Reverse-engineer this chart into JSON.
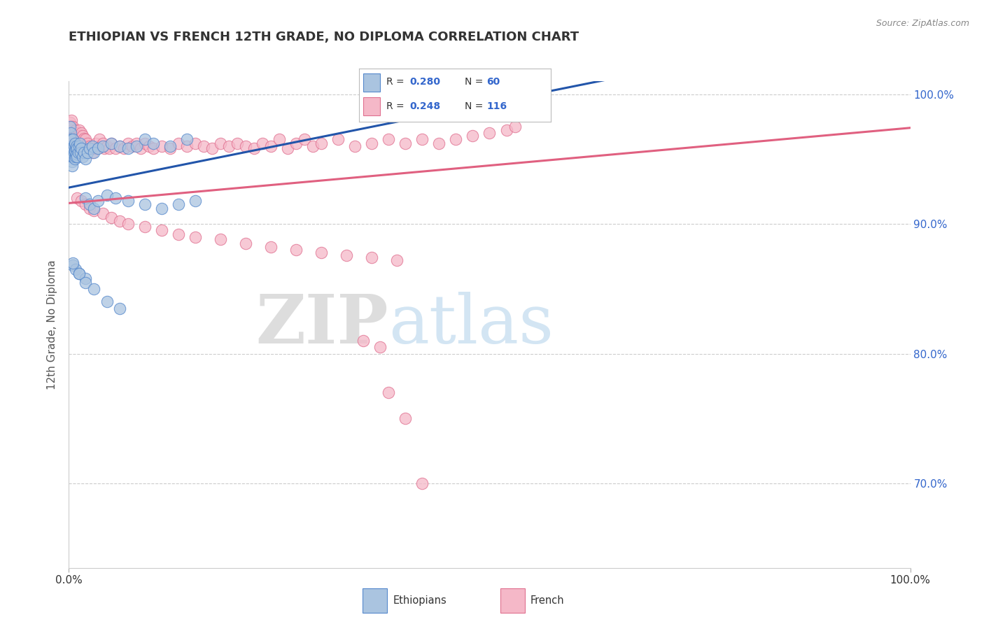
{
  "title": "ETHIOPIAN VS FRENCH 12TH GRADE, NO DIPLOMA CORRELATION CHART",
  "source_text": "Source: ZipAtlas.com",
  "ylabel": "12th Grade, No Diploma",
  "xlim": [
    0.0,
    1.0
  ],
  "ylim": [
    0.635,
    1.01
  ],
  "right_yticks": [
    0.7,
    0.8,
    0.9,
    1.0
  ],
  "right_yticklabels": [
    "70.0%",
    "80.0%",
    "90.0%",
    "100.0%"
  ],
  "legend_r_ethiopian": "0.280",
  "legend_n_ethiopian": "60",
  "legend_r_french": "0.248",
  "legend_n_french": "116",
  "blue_fill": "#aac4e0",
  "blue_edge": "#5588cc",
  "pink_fill": "#f5b8c8",
  "pink_edge": "#e07090",
  "blue_line": "#2255aa",
  "pink_line": "#e06080",
  "label_color": "#3366cc",
  "watermark_zip": "ZIP",
  "watermark_atlas": "atlas",
  "background_color": "#ffffff",
  "eth_x": [
    0.001,
    0.002,
    0.002,
    0.003,
    0.003,
    0.003,
    0.004,
    0.004,
    0.004,
    0.005,
    0.005,
    0.005,
    0.006,
    0.006,
    0.007,
    0.007,
    0.007,
    0.008,
    0.008,
    0.009,
    0.009,
    0.01,
    0.01,
    0.011,
    0.012,
    0.013,
    0.014,
    0.015,
    0.016,
    0.018,
    0.02,
    0.022,
    0.025,
    0.028,
    0.03,
    0.035,
    0.04,
    0.05,
    0.06,
    0.07,
    0.08,
    0.09,
    0.1,
    0.12,
    0.14,
    0.02,
    0.025,
    0.03,
    0.035,
    0.045,
    0.055,
    0.07,
    0.09,
    0.11,
    0.13,
    0.15,
    0.005,
    0.008,
    0.012,
    0.02
  ],
  "eth_y": [
    0.975,
    0.97,
    0.965,
    0.96,
    0.958,
    0.955,
    0.952,
    0.948,
    0.945,
    0.965,
    0.958,
    0.952,
    0.96,
    0.955,
    0.962,
    0.956,
    0.95,
    0.958,
    0.952,
    0.96,
    0.954,
    0.958,
    0.952,
    0.955,
    0.96,
    0.962,
    0.955,
    0.958,
    0.952,
    0.955,
    0.95,
    0.955,
    0.958,
    0.96,
    0.955,
    0.958,
    0.96,
    0.962,
    0.96,
    0.958,
    0.96,
    0.965,
    0.962,
    0.96,
    0.965,
    0.92,
    0.915,
    0.912,
    0.918,
    0.922,
    0.92,
    0.918,
    0.915,
    0.912,
    0.915,
    0.918,
    0.868,
    0.865,
    0.862,
    0.858
  ],
  "fr_x": [
    0.001,
    0.001,
    0.002,
    0.002,
    0.003,
    0.003,
    0.003,
    0.004,
    0.004,
    0.004,
    0.005,
    0.005,
    0.005,
    0.006,
    0.006,
    0.007,
    0.007,
    0.008,
    0.008,
    0.009,
    0.009,
    0.01,
    0.01,
    0.011,
    0.011,
    0.012,
    0.012,
    0.013,
    0.013,
    0.014,
    0.015,
    0.015,
    0.016,
    0.017,
    0.018,
    0.019,
    0.02,
    0.021,
    0.022,
    0.023,
    0.025,
    0.027,
    0.028,
    0.03,
    0.032,
    0.034,
    0.036,
    0.038,
    0.04,
    0.042,
    0.045,
    0.048,
    0.05,
    0.055,
    0.06,
    0.065,
    0.07,
    0.075,
    0.08,
    0.085,
    0.09,
    0.095,
    0.1,
    0.11,
    0.12,
    0.13,
    0.14,
    0.15,
    0.16,
    0.17,
    0.18,
    0.19,
    0.2,
    0.21,
    0.22,
    0.23,
    0.24,
    0.25,
    0.26,
    0.27,
    0.28,
    0.29,
    0.3,
    0.32,
    0.34,
    0.36,
    0.38,
    0.4,
    0.42,
    0.44,
    0.46,
    0.48,
    0.5,
    0.52,
    0.53,
    0.01,
    0.015,
    0.02,
    0.025,
    0.03,
    0.04,
    0.05,
    0.06,
    0.07,
    0.09,
    0.11,
    0.13,
    0.15,
    0.18,
    0.21,
    0.24,
    0.27,
    0.3,
    0.33,
    0.36,
    0.39
  ],
  "fr_y": [
    0.978,
    0.972,
    0.975,
    0.968,
    0.98,
    0.975,
    0.968,
    0.972,
    0.966,
    0.96,
    0.975,
    0.97,
    0.963,
    0.968,
    0.962,
    0.97,
    0.964,
    0.972,
    0.966,
    0.968,
    0.962,
    0.97,
    0.964,
    0.968,
    0.962,
    0.972,
    0.966,
    0.968,
    0.962,
    0.965,
    0.97,
    0.964,
    0.968,
    0.962,
    0.966,
    0.96,
    0.965,
    0.96,
    0.962,
    0.958,
    0.96,
    0.958,
    0.955,
    0.958,
    0.962,
    0.958,
    0.965,
    0.96,
    0.962,
    0.958,
    0.96,
    0.958,
    0.962,
    0.958,
    0.96,
    0.958,
    0.962,
    0.96,
    0.962,
    0.958,
    0.962,
    0.96,
    0.958,
    0.96,
    0.958,
    0.962,
    0.96,
    0.962,
    0.96,
    0.958,
    0.962,
    0.96,
    0.962,
    0.96,
    0.958,
    0.962,
    0.96,
    0.965,
    0.958,
    0.962,
    0.965,
    0.96,
    0.962,
    0.965,
    0.96,
    0.962,
    0.965,
    0.962,
    0.965,
    0.962,
    0.965,
    0.968,
    0.97,
    0.972,
    0.975,
    0.92,
    0.918,
    0.915,
    0.912,
    0.91,
    0.908,
    0.905,
    0.902,
    0.9,
    0.898,
    0.895,
    0.892,
    0.89,
    0.888,
    0.885,
    0.882,
    0.88,
    0.878,
    0.876,
    0.874,
    0.872
  ]
}
